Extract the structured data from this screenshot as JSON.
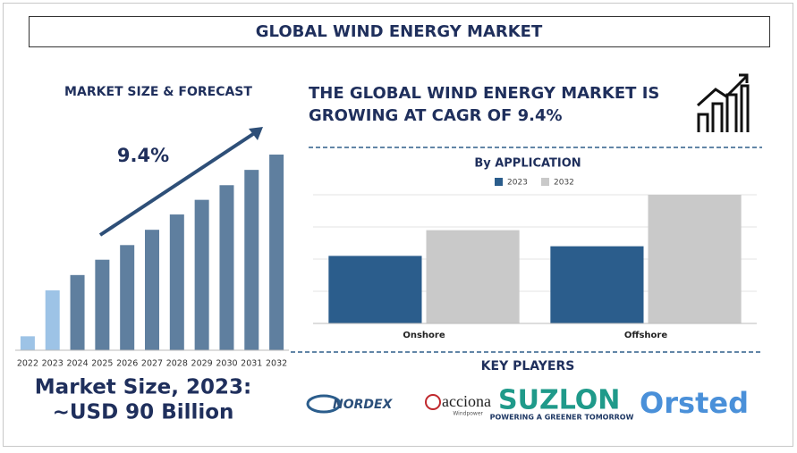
{
  "title": "GLOBAL WIND ENERGY MARKET",
  "headline": [
    "THE GLOBAL WIND ENERGY MARKET IS",
    "GROWING AT CAGR OF 9.4%"
  ],
  "market_size": [
    "Market Size, 2023:",
    "~USD 90 Billion"
  ],
  "key_players": {
    "title": "KEY PLAYERS",
    "logos": [
      {
        "name": "NORDEX"
      },
      {
        "name": "acciona",
        "tagline": "Windpower"
      },
      {
        "name": "SUZLON",
        "tagline": "POWERING A GREENER TOMORROW"
      },
      {
        "name": "Orsted"
      }
    ]
  },
  "chart_data": [
    {
      "type": "bar",
      "title": "MARKET SIZE & FORECAST",
      "annotation": "9.4%",
      "categories": [
        "2022",
        "2023",
        "2024",
        "2025",
        "2026",
        "2027",
        "2028",
        "2029",
        "2030",
        "2031",
        "2032"
      ],
      "values": [
        21,
        90,
        113,
        136,
        158,
        181,
        204,
        226,
        248,
        271,
        294
      ],
      "colors": [
        "#9dc3e6",
        "#9dc3e6",
        "#5f7f9f",
        "#5f7f9f",
        "#5f7f9f",
        "#5f7f9f",
        "#5f7f9f",
        "#5f7f9f",
        "#5f7f9f",
        "#5f7f9f",
        "#5f7f9f"
      ]
    },
    {
      "type": "bar",
      "title": "By APPLICATION",
      "categories": [
        "Onshore",
        "Offshore"
      ],
      "series": [
        {
          "name": "2023",
          "color": "#2b5d8c",
          "values": [
            2.1,
            2.4
          ]
        },
        {
          "name": "2032",
          "color": "#c9c9c9",
          "values": [
            2.9,
            4.0
          ]
        }
      ],
      "ylim": [
        0,
        4
      ],
      "yticks": [
        0,
        1,
        2,
        3,
        4
      ],
      "grid": true
    }
  ]
}
